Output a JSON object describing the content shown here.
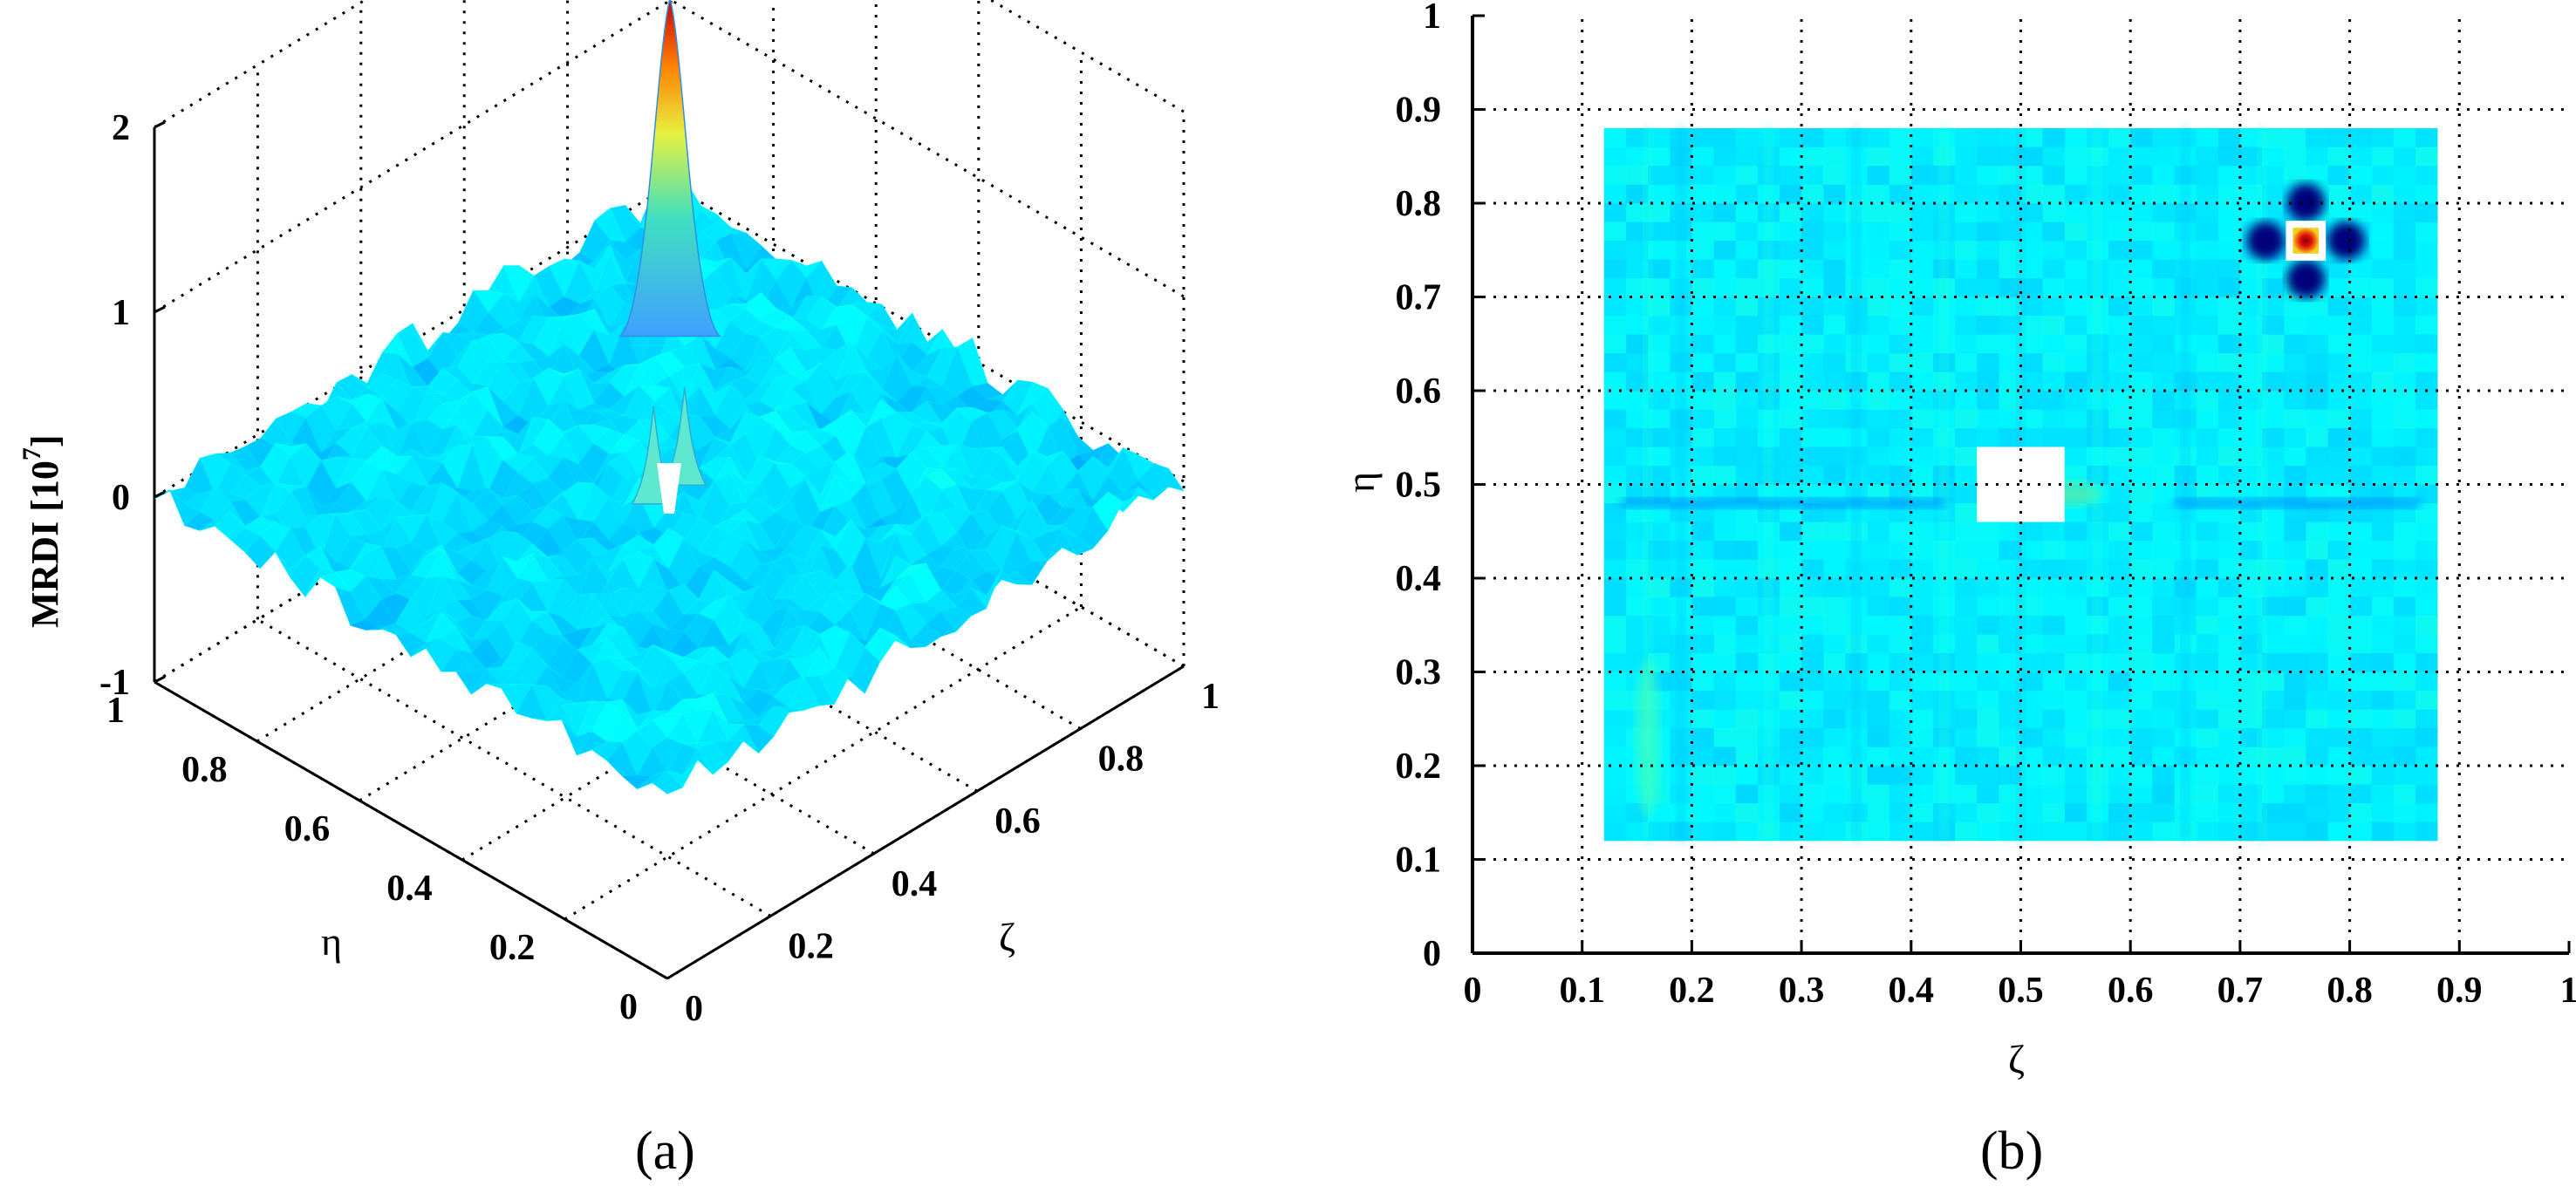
{
  "chart_data": [
    {
      "panel": "a",
      "type": "surface3d",
      "caption": "(a)",
      "xlabel": "ζ",
      "ylabel": "η",
      "zlabel": "MRDI [10",
      "zlabel_exponent": "7",
      "zlabel_close": "]",
      "xlim": [
        0,
        1
      ],
      "ylim": [
        0,
        1
      ],
      "zlim": [
        -1,
        2
      ],
      "xticks": [
        "0",
        "0.2",
        "0.4",
        "0.6",
        "0.8",
        "1"
      ],
      "yticks": [
        "0",
        "0.2",
        "0.4",
        "0.6",
        "0.8",
        "1"
      ],
      "zticks": [
        "-1",
        "0",
        "1",
        "2"
      ],
      "grid": true,
      "colormap": "jet",
      "baseline_level": 0,
      "peaks": [
        {
          "name": "main-peak",
          "zeta": 0.76,
          "eta": 0.76,
          "z": 1.8
        },
        {
          "name": "center-spike-left",
          "zeta": 0.47,
          "eta": 0.5,
          "z": 0.5
        },
        {
          "name": "center-spike-right",
          "zeta": 0.53,
          "eta": 0.5,
          "z": 0.5
        }
      ]
    },
    {
      "panel": "b",
      "type": "heatmap",
      "caption": "(b)",
      "xlabel": "ζ",
      "ylabel": "η",
      "xlim": [
        0,
        1
      ],
      "ylim": [
        0,
        1
      ],
      "xticks": [
        "0",
        "0.1",
        "0.2",
        "0.3",
        "0.4",
        "0.5",
        "0.6",
        "0.7",
        "0.8",
        "0.9",
        "1"
      ],
      "yticks": [
        "0",
        "0.1",
        "0.2",
        "0.3",
        "0.4",
        "0.5",
        "0.6",
        "0.7",
        "0.8",
        "0.9",
        "1"
      ],
      "grid": true,
      "colormap": "jet",
      "data_extent": {
        "zeta": [
          0.12,
          0.88
        ],
        "eta": [
          0.12,
          0.88
        ]
      },
      "hot_spot": {
        "zeta": 0.76,
        "eta": 0.76,
        "size": 0.04
      },
      "masked_square": {
        "zeta": [
          0.46,
          0.54
        ],
        "eta": [
          0.46,
          0.54
        ]
      },
      "dark_line": {
        "eta": 0.48
      }
    }
  ]
}
